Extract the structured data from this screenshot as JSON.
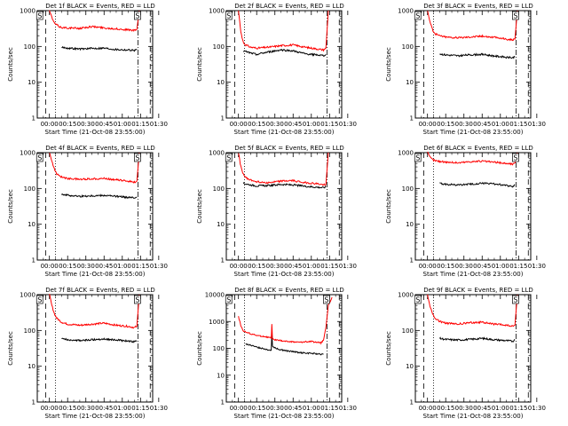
{
  "chart_data": [
    {
      "type": "line",
      "title": "Det 1f BLACK = Events, RED = LLD",
      "xlabel": "Start Time (21-Oct-08 23:55:00)",
      "ylabel": "Counts/sec",
      "yscale": "log",
      "ylim": [
        1,
        1000
      ],
      "x_ticks": [
        "00:00",
        "00:15",
        "00:30",
        "00:45",
        "01:00",
        "01:15",
        "01:30"
      ],
      "y_ticks": [
        "1",
        "10",
        "100",
        "1000"
      ],
      "markers": [
        "S",
        "S"
      ],
      "series": [
        {
          "name": "RED = LLD",
          "color": "#ff0000",
          "x": [
            0,
            2,
            4,
            6,
            8,
            10,
            15,
            25,
            35,
            45,
            55,
            65,
            70,
            72,
            74
          ],
          "y": [
            1000,
            650,
            450,
            400,
            360,
            340,
            330,
            320,
            360,
            330,
            310,
            290,
            280,
            300,
            1000
          ]
        },
        {
          "name": "BLACK = Events",
          "color": "#000000",
          "x": [
            10,
            15,
            25,
            35,
            45,
            55,
            65,
            70,
            72
          ],
          "y": [
            95,
            90,
            85,
            88,
            90,
            82,
            80,
            78,
            85
          ]
        }
      ]
    },
    {
      "type": "line",
      "title": "Det 2f BLACK = Events, RED = LLD",
      "xlabel": "Start Time (21-Oct-08 23:55:00)",
      "ylabel": "Counts/sec",
      "yscale": "log",
      "ylim": [
        1,
        1000
      ],
      "x_ticks": [
        "00:00",
        "00:15",
        "00:30",
        "00:45",
        "01:00",
        "01:15",
        "01:30"
      ],
      "y_ticks": [
        "1",
        "10",
        "100",
        "1000"
      ],
      "markers": [
        "S"
      ],
      "series": [
        {
          "name": "RED = LLD",
          "color": "#ff0000",
          "x": [
            0,
            2,
            4,
            6,
            10,
            15,
            25,
            35,
            45,
            55,
            65,
            70,
            72,
            74
          ],
          "y": [
            1000,
            250,
            130,
            110,
            95,
            90,
            95,
            105,
            110,
            95,
            85,
            80,
            90,
            1000
          ]
        },
        {
          "name": "BLACK = Events",
          "color": "#000000",
          "x": [
            4,
            10,
            15,
            25,
            35,
            45,
            55,
            65,
            70,
            72
          ],
          "y": [
            75,
            65,
            60,
            70,
            80,
            75,
            62,
            58,
            55,
            60
          ]
        }
      ]
    },
    {
      "type": "line",
      "title": "Det 3f BLACK = Events, RED = LLD",
      "xlabel": "Start Time (21-Oct-08 23:55:00)",
      "ylabel": "Counts/sec",
      "yscale": "log",
      "ylim": [
        1,
        1000
      ],
      "x_ticks": [
        "00:00",
        "00:15",
        "00:30",
        "00:45",
        "01:00",
        "01:15",
        "01:30"
      ],
      "y_ticks": [
        "1",
        "10",
        "100",
        "1000"
      ],
      "markers": [
        "S",
        "S"
      ],
      "series": [
        {
          "name": "RED = LLD",
          "color": "#ff0000",
          "x": [
            0,
            2,
            4,
            6,
            10,
            15,
            25,
            35,
            45,
            55,
            65,
            70,
            72,
            74
          ],
          "y": [
            1000,
            500,
            300,
            230,
            200,
            185,
            175,
            185,
            195,
            180,
            160,
            150,
            160,
            1000
          ]
        },
        {
          "name": "BLACK = Events",
          "color": "#000000",
          "x": [
            10,
            15,
            25,
            35,
            45,
            55,
            65,
            70,
            72
          ],
          "y": [
            62,
            58,
            55,
            58,
            60,
            54,
            50,
            48,
            52
          ]
        }
      ]
    },
    {
      "type": "line",
      "title": "Det 4f BLACK = Events, RED = LLD",
      "xlabel": "Start Time (21-Oct-08 23:55:00)",
      "ylabel": "Counts/sec",
      "yscale": "log",
      "ylim": [
        1,
        1000
      ],
      "x_ticks": [
        "00:00",
        "00:15",
        "00:30",
        "00:45",
        "01:00",
        "01:15",
        "01:30"
      ],
      "y_ticks": [
        "1",
        "10",
        "100",
        "1000"
      ],
      "markers": [
        "S",
        "S"
      ],
      "series": [
        {
          "name": "RED = LLD",
          "color": "#ff0000",
          "x": [
            0,
            2,
            4,
            6,
            10,
            15,
            25,
            35,
            45,
            55,
            65,
            70,
            72,
            74
          ],
          "y": [
            1000,
            600,
            350,
            250,
            210,
            190,
            180,
            185,
            190,
            175,
            160,
            150,
            160,
            1000
          ]
        },
        {
          "name": "BLACK = Events",
          "color": "#000000",
          "x": [
            10,
            15,
            25,
            35,
            45,
            55,
            65,
            70,
            72
          ],
          "y": [
            70,
            65,
            60,
            62,
            64,
            60,
            56,
            54,
            58
          ]
        }
      ]
    },
    {
      "type": "line",
      "title": "Det 5f BLACK = Events, RED = LLD",
      "xlabel": "Start Time (21-Oct-08 23:55:00)",
      "ylabel": "Counts/sec",
      "yscale": "log",
      "ylim": [
        1,
        1000
      ],
      "x_ticks": [
        "00:00",
        "00:15",
        "00:30",
        "00:45",
        "01:00",
        "01:15",
        "01:30"
      ],
      "y_ticks": [
        "1",
        "10",
        "100",
        "1000"
      ],
      "markers": [
        "S"
      ],
      "series": [
        {
          "name": "RED = LLD",
          "color": "#ff0000",
          "x": [
            0,
            2,
            4,
            6,
            10,
            15,
            25,
            35,
            45,
            55,
            65,
            70,
            72,
            74
          ],
          "y": [
            1000,
            400,
            250,
            200,
            170,
            155,
            145,
            160,
            165,
            145,
            135,
            125,
            130,
            1000
          ]
        },
        {
          "name": "BLACK = Events",
          "color": "#000000",
          "x": [
            4,
            10,
            15,
            25,
            35,
            45,
            55,
            65,
            70,
            72
          ],
          "y": [
            140,
            125,
            118,
            120,
            130,
            125,
            115,
            108,
            105,
            110
          ]
        }
      ]
    },
    {
      "type": "line",
      "title": "Det 6f BLACK = Events, RED = LLD",
      "xlabel": "Start Time (21-Oct-08 23:55:00)",
      "ylabel": "Counts/sec",
      "yscale": "log",
      "ylim": [
        1,
        1000
      ],
      "x_ticks": [
        "00:00",
        "00:15",
        "00:30",
        "00:45",
        "01:00",
        "01:15",
        "01:30"
      ],
      "y_ticks": [
        "1",
        "10",
        "100",
        "1000"
      ],
      "markers": [
        "S",
        "S"
      ],
      "series": [
        {
          "name": "RED = LLD",
          "color": "#ff0000",
          "x": [
            0,
            2,
            4,
            6,
            10,
            15,
            25,
            35,
            45,
            55,
            65,
            70,
            72,
            74
          ],
          "y": [
            1000,
            750,
            650,
            600,
            570,
            550,
            520,
            560,
            580,
            540,
            500,
            480,
            500,
            1000
          ]
        },
        {
          "name": "BLACK = Events",
          "color": "#000000",
          "x": [
            10,
            15,
            25,
            35,
            45,
            55,
            65,
            70,
            72
          ],
          "y": [
            140,
            130,
            125,
            130,
            140,
            135,
            120,
            115,
            125
          ]
        }
      ]
    },
    {
      "type": "line",
      "title": "Det 7f BLACK = Events, RED = LLD",
      "xlabel": "Start Time (21-Oct-08 23:55:00)",
      "ylabel": "Counts/sec",
      "yscale": "log",
      "ylim": [
        1,
        1000
      ],
      "x_ticks": [
        "00:00",
        "00:15",
        "00:30",
        "00:45",
        "01:00",
        "01:15",
        "01:30"
      ],
      "y_ticks": [
        "1",
        "10",
        "100",
        "1000"
      ],
      "markers": [
        "S",
        "S"
      ],
      "series": [
        {
          "name": "RED = LLD",
          "color": "#ff0000",
          "x": [
            0,
            2,
            4,
            6,
            10,
            15,
            25,
            35,
            45,
            55,
            65,
            70,
            72,
            74
          ],
          "y": [
            1000,
            500,
            300,
            220,
            170,
            150,
            140,
            150,
            160,
            140,
            130,
            120,
            130,
            1000
          ]
        },
        {
          "name": "BLACK = Events",
          "color": "#000000",
          "x": [
            10,
            15,
            25,
            35,
            45,
            55,
            65,
            70,
            72
          ],
          "y": [
            58,
            55,
            52,
            55,
            58,
            54,
            50,
            48,
            52
          ]
        }
      ]
    },
    {
      "type": "line",
      "title": "Det 8f BLACK = Events, RED = LLD",
      "xlabel": "Start Time (21-Oct-08 23:55:00)",
      "ylabel": "Counts/sec",
      "yscale": "log",
      "ylim": [
        1,
        10000
      ],
      "x_ticks": [
        "00:00",
        "00:15",
        "00:30",
        "00:45",
        "01:00",
        "01:15",
        "01:30"
      ],
      "y_ticks": [
        "1",
        "10",
        "100",
        "1000",
        "10000"
      ],
      "markers": [
        "S",
        "S"
      ],
      "series": [
        {
          "name": "RED = LLD",
          "color": "#ff0000",
          "x": [
            0,
            2,
            4,
            6,
            10,
            15,
            20,
            24,
            27,
            27.5,
            28,
            32,
            40,
            50,
            60,
            68,
            70,
            72,
            74,
            77
          ],
          "y": [
            1500,
            700,
            450,
            400,
            350,
            300,
            280,
            260,
            240,
            800,
            220,
            200,
            180,
            170,
            180,
            160,
            200,
            600,
            4000,
            8000
          ]
        },
        {
          "name": "BLACK = Events",
          "color": "#000000",
          "x": [
            6,
            10,
            15,
            20,
            24,
            27,
            27.5,
            28,
            32,
            40,
            50,
            60,
            68,
            70
          ],
          "y": [
            150,
            130,
            110,
            100,
            90,
            85,
            400,
            120,
            95,
            80,
            70,
            65,
            60,
            60
          ]
        }
      ]
    },
    {
      "type": "line",
      "title": "Det 9f BLACK = Events, RED = LLD",
      "xlabel": "Start Time (21-Oct-08 23:55:00)",
      "ylabel": "Counts/sec",
      "yscale": "log",
      "ylim": [
        1,
        1000
      ],
      "x_ticks": [
        "00:00",
        "00:15",
        "00:30",
        "00:45",
        "01:00",
        "01:15",
        "01:30"
      ],
      "y_ticks": [
        "1",
        "10",
        "100",
        "1000"
      ],
      "markers": [
        "S",
        "S"
      ],
      "series": [
        {
          "name": "RED = LLD",
          "color": "#ff0000",
          "x": [
            0,
            2,
            4,
            6,
            10,
            15,
            25,
            35,
            45,
            55,
            65,
            70,
            72,
            74
          ],
          "y": [
            1000,
            500,
            300,
            220,
            180,
            160,
            150,
            165,
            170,
            150,
            140,
            130,
            140,
            1000
          ]
        },
        {
          "name": "BLACK = Events",
          "color": "#000000",
          "x": [
            10,
            15,
            25,
            35,
            45,
            55,
            65,
            70,
            72
          ],
          "y": [
            60,
            56,
            54,
            56,
            60,
            55,
            52,
            50,
            54
          ]
        }
      ]
    }
  ]
}
